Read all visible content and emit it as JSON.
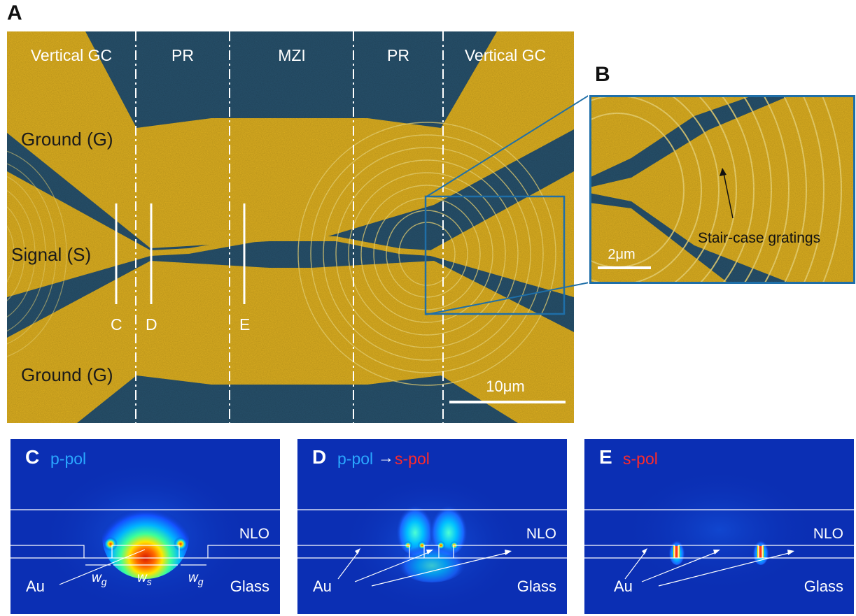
{
  "panels": {
    "a": "A",
    "b": "B",
    "c": "C",
    "d": "D",
    "e": "E"
  },
  "sem": {
    "sections": [
      "Vertical GC",
      "PR",
      "MZI",
      "PR",
      "Vertical GC"
    ],
    "ground_top": "Ground (G)",
    "ground_bottom": "Ground (G)",
    "signal": "Signal (S)",
    "cuts": [
      "C",
      "D",
      "E"
    ],
    "scale_bar": "10μm",
    "colors": {
      "gold": "#ddaf20",
      "blue": "#27516c"
    }
  },
  "zoom": {
    "scale_bar": "2μm",
    "annotation": "Stair-case gratings",
    "frame_color": "#1f6fa8"
  },
  "sims": [
    {
      "letter": "C",
      "pol_a": "p-pol",
      "arrow": "",
      "pol_b": "",
      "nlo": "NLO",
      "au": "Au",
      "glass": "Glass",
      "wg_sym": "w",
      "wg_sub": "g",
      "ws_sym": "w",
      "ws_sub": "s"
    },
    {
      "letter": "D",
      "pol_a": "p-pol",
      "arrow": "→",
      "pol_b": "s-pol",
      "nlo": "NLO",
      "au": "Au",
      "glass": "Glass"
    },
    {
      "letter": "E",
      "pol_a": "",
      "arrow": "",
      "pol_b": "s-pol",
      "nlo": "NLO",
      "au": "Au",
      "glass": "Glass"
    }
  ],
  "pol_colors": {
    "p": "#2aa8ff",
    "s": "#ff2a2a"
  }
}
